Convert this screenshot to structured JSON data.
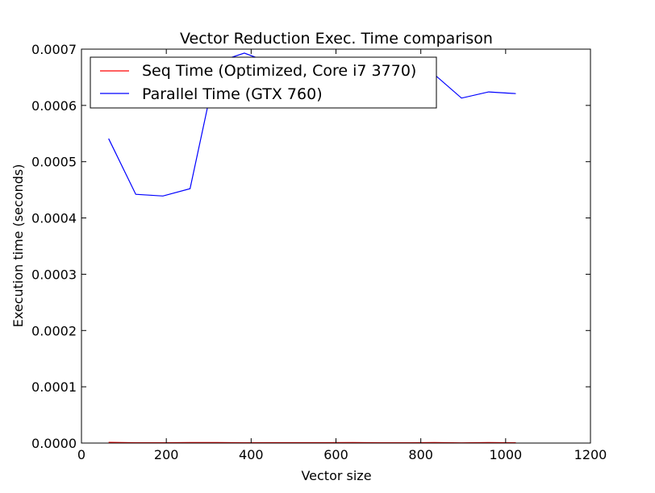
{
  "chart_data": {
    "type": "line",
    "title": "Vector Reduction Exec. Time comparison",
    "xlabel": "Vector size",
    "ylabel": "Execution time (seconds)",
    "xlim": [
      0,
      1200
    ],
    "ylim": [
      0,
      0.0007
    ],
    "xticks": [
      0,
      200,
      400,
      600,
      800,
      1000,
      1200
    ],
    "yticks": [
      0,
      0.0001,
      0.0002,
      0.0003,
      0.0004,
      0.0005,
      0.0006,
      0.0007
    ],
    "xtick_labels": [
      "0",
      "200",
      "400",
      "600",
      "800",
      "1000",
      "1200"
    ],
    "ytick_labels": [
      "0.0000",
      "0.0001",
      "0.0002",
      "0.0003",
      "0.0004",
      "0.0005",
      "0.0006",
      "0.0007"
    ],
    "grid": false,
    "legend_position": "top-left",
    "x": [
      64,
      128,
      192,
      256,
      320,
      384,
      448,
      512,
      576,
      640,
      704,
      768,
      832,
      896,
      960,
      1024
    ],
    "series": [
      {
        "name": "Seq Time (Optimized, Core i7 3770)",
        "color": "#ff0000",
        "values": [
          1.2e-06,
          6e-07,
          6e-07,
          9e-07,
          1e-06,
          5e-07,
          7e-07,
          7e-07,
          8e-07,
          9e-07,
          5e-07,
          5e-07,
          9e-07,
          4e-07,
          1e-06,
          6e-07
        ]
      },
      {
        "name": "Parallel Time (GTX 760)",
        "color": "#0000ff",
        "values": [
          0.000541,
          0.000442,
          0.000439,
          0.000452,
          0.000677,
          0.000693,
          0.000675,
          0.00068,
          0.000684,
          0.00068,
          0.000681,
          0.000683,
          0.000655,
          0.000613,
          0.000624,
          0.000621
        ]
      }
    ]
  }
}
